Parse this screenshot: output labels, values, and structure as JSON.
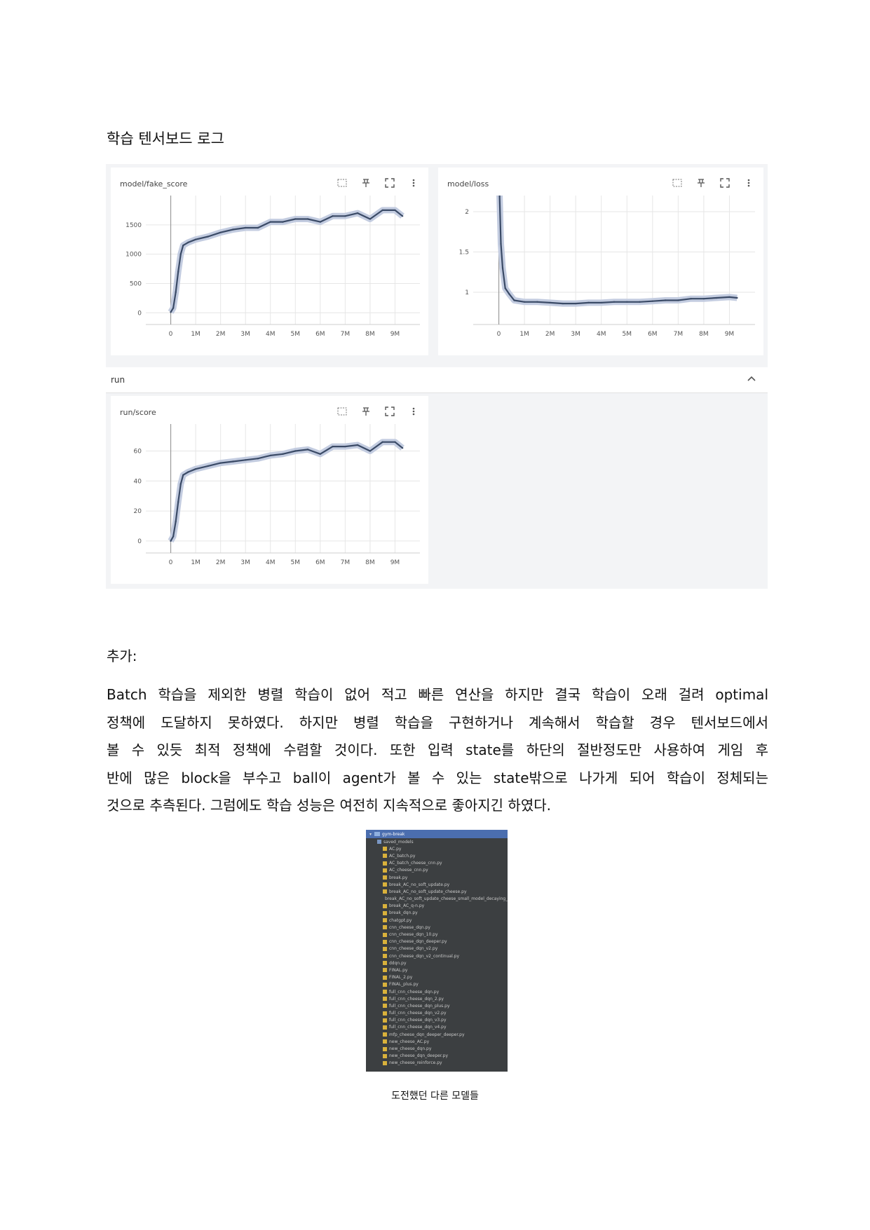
{
  "heading": "학습 텐서보드 로그",
  "tensorboard": {
    "cards": [
      {
        "title": "model/fake_score"
      },
      {
        "title": "model/loss"
      },
      {
        "title": "run/score"
      }
    ],
    "run_section": {
      "label": "run"
    },
    "tool_icons": [
      "fit-domain-icon",
      "pin-icon",
      "fullscreen-icon",
      "more-vert-icon"
    ]
  },
  "chart_data": [
    {
      "type": "line",
      "title": "model/fake_score",
      "x_ticks": [
        "0",
        "1M",
        "2M",
        "3M",
        "4M",
        "5M",
        "6M",
        "7M",
        "8M",
        "9M"
      ],
      "y_ticks": [
        "0",
        "500",
        "1000",
        "1500"
      ],
      "xlim": [
        -1000000,
        10000000
      ],
      "ylim": [
        -200,
        2000
      ],
      "grid": true,
      "series": [
        {
          "x": [
            0,
            100000,
            200000,
            300000,
            400000,
            500000,
            700000,
            1000000,
            1500000,
            2000000,
            2500000,
            3000000,
            3500000,
            4000000,
            4500000,
            5000000,
            5500000,
            6000000,
            6500000,
            7000000,
            7500000,
            8000000,
            8500000,
            9000000,
            9300000
          ],
          "y": [
            10,
            80,
            350,
            700,
            1000,
            1150,
            1200,
            1250,
            1300,
            1370,
            1420,
            1450,
            1450,
            1550,
            1550,
            1600,
            1600,
            1550,
            1650,
            1650,
            1700,
            1600,
            1750,
            1750,
            1650
          ]
        }
      ]
    },
    {
      "type": "line",
      "title": "model/loss",
      "x_ticks": [
        "0",
        "1M",
        "2M",
        "3M",
        "4M",
        "5M",
        "6M",
        "7M",
        "8M",
        "9M"
      ],
      "y_ticks": [
        "1",
        "1.5",
        "2"
      ],
      "xlim": [
        -1000000,
        10000000
      ],
      "ylim": [
        0.6,
        2.2
      ],
      "grid": true,
      "series": [
        {
          "x": [
            0,
            30000,
            80000,
            150000,
            250000,
            400000,
            600000,
            1000000,
            1500000,
            2000000,
            2500000,
            3000000,
            3500000,
            4000000,
            4500000,
            5000000,
            5500000,
            6000000,
            6500000,
            7000000,
            7500000,
            8000000,
            8500000,
            9000000,
            9300000
          ],
          "y": [
            2.25,
            2.2,
            1.6,
            1.3,
            1.05,
            0.98,
            0.9,
            0.88,
            0.88,
            0.87,
            0.86,
            0.86,
            0.87,
            0.87,
            0.88,
            0.88,
            0.88,
            0.89,
            0.9,
            0.9,
            0.92,
            0.92,
            0.93,
            0.94,
            0.93
          ]
        }
      ]
    },
    {
      "type": "line",
      "title": "run/score",
      "x_ticks": [
        "0",
        "1M",
        "2M",
        "3M",
        "4M",
        "5M",
        "6M",
        "7M",
        "8M",
        "9M"
      ],
      "y_ticks": [
        "0",
        "20",
        "40",
        "60"
      ],
      "xlim": [
        -1000000,
        10000000
      ],
      "ylim": [
        -8,
        78
      ],
      "grid": true,
      "series": [
        {
          "x": [
            0,
            100000,
            200000,
            300000,
            400000,
            500000,
            700000,
            1000000,
            1500000,
            2000000,
            2500000,
            3000000,
            3500000,
            4000000,
            4500000,
            5000000,
            5500000,
            6000000,
            6500000,
            7000000,
            7500000,
            8000000,
            8500000,
            9000000,
            9300000
          ],
          "y": [
            0,
            3,
            13,
            26,
            38,
            44,
            46,
            48,
            50,
            52,
            53,
            54,
            55,
            57,
            58,
            60,
            61,
            58,
            63,
            63,
            64,
            60,
            66,
            66,
            62
          ]
        }
      ]
    }
  ],
  "addendum": {
    "heading": "추가:",
    "lines": [
      "Batch 학습을 제외한 병렬 학습이 없어 적고 빠른 연산을 하지만 결국 학습이 오래 걸려 optimal",
      "정책에 도달하지 못하였다. 하지만 병렬 학습을 구현하거나 계속해서 학습할 경우 텐서보드에서",
      "볼 수 있듯 최적 정책에 수렴할 것이다. 또한 입력 state를 하단의 절반정도만 사용하여 게임 후",
      "반에 많은 block을 부수고 ball이 agent가 볼 수 있는 state밖으로 나가게 되어 학습이 정체되는",
      "것으로 추측된다. 그럼에도 학습 성능은 여전히 지속적으로 좋아지긴 하였다."
    ]
  },
  "file_tree": {
    "root": "gym-break",
    "folders": [
      "saved_models"
    ],
    "files": [
      "AC.py",
      "AC_batch.py",
      "AC_batch_cheese_cnn.py",
      "AC_cheese_cnn.py",
      "break.py",
      "break_AC_no_soft_update.py",
      "break_AC_no_soft_update_cheese.py",
      "break_AC_no_soft_update_cheese_small_model_decaying_eps",
      "break_AC_q-n.py",
      "break_dqn.py",
      "chatgpt.py",
      "cnn_cheese_dqn.py",
      "cnn_cheese_dqn_10.py",
      "cnn_cheese_dqn_deeper.py",
      "cnn_cheese_dqn_v2.py",
      "cnn_cheese_dqn_v2_continual.py",
      "ddqn.py",
      "FINAL.py",
      "FINAL_2.py",
      "FINAL_plus.py",
      "full_cnn_cheese_dqn.py",
      "full_cnn_cheese_dqn_2.py",
      "full_cnn_cheese_dqn_plus.py",
      "full_cnn_cheese_dqn_v2.py",
      "full_cnn_cheese_dqn_v3.py",
      "full_cnn_cheese_dqn_v4.py",
      "mfp_cheese_dqn_deeper_deeper.py",
      "new_cheese_AC.py",
      "new_cheese_dqn.py",
      "new_cheese_dqn_deeper.py",
      "new_cheese_reinforce.py"
    ]
  },
  "caption": "도전했던 다른 모델들",
  "colors": {
    "line": "#3a4a66",
    "band": "#c3cce0",
    "grid": "#e6e6e6",
    "tree_bg": "#3c3f41",
    "tree_header": "#4b6eaf",
    "py_icon": "#d9b13b",
    "folder_icon": "#7a97c4"
  }
}
